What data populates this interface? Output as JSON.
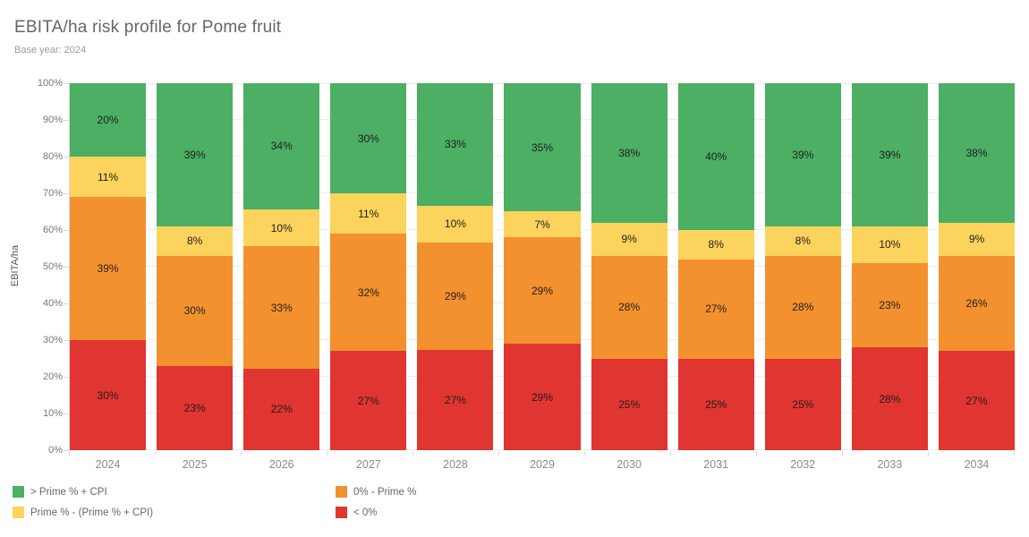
{
  "header": {
    "title": "EBITA/ha risk profile for Pome fruit",
    "subtitle": "Base year: 2024"
  },
  "chart_data": {
    "type": "bar",
    "stacked": true,
    "orientation": "vertical",
    "title": "EBITA/ha risk profile for Pome fruit",
    "subtitle": "Base year: 2024",
    "xlabel": "",
    "ylabel": "EBITA/ha",
    "ylim": [
      0,
      100
    ],
    "ytick_step": 10,
    "ytick_labels": [
      "0%",
      "10%",
      "20%",
      "30%",
      "40%",
      "50%",
      "60%",
      "70%",
      "80%",
      "90%",
      "100%"
    ],
    "grid": true,
    "categories": [
      "2024",
      "2025",
      "2026",
      "2027",
      "2028",
      "2029",
      "2030",
      "2031",
      "2032",
      "2033",
      "2034"
    ],
    "series": [
      {
        "name": "< 0%",
        "color": "#e03531",
        "values": [
          30,
          23,
          22,
          27,
          27,
          29,
          25,
          25,
          25,
          28,
          27
        ]
      },
      {
        "name": "0% - Prime %",
        "color": "#f3912e",
        "values": [
          39,
          30,
          33,
          32,
          29,
          29,
          28,
          27,
          28,
          23,
          26
        ]
      },
      {
        "name": "Prime % - (Prime % + CPI)",
        "color": "#fcd35c",
        "values": [
          11,
          8,
          10,
          11,
          10,
          7,
          9,
          8,
          8,
          10,
          9
        ]
      },
      {
        "name": "> Prime % + CPI",
        "color": "#4caf63",
        "values": [
          20,
          39,
          34,
          30,
          33,
          35,
          38,
          40,
          39,
          39,
          38
        ]
      }
    ],
    "data_label_format": "{value}%",
    "legend_position": "bottom",
    "legend": [
      {
        "label": "> Prime % + CPI",
        "color": "#4caf63"
      },
      {
        "label": "Prime % - (Prime % + CPI)",
        "color": "#fcd35c"
      },
      {
        "label": "0% - Prime %",
        "color": "#f3912e"
      },
      {
        "label": "< 0%",
        "color": "#e03531"
      }
    ]
  },
  "colors": {
    "green": "#4caf63",
    "yellow": "#fcd35c",
    "orange": "#f3912e",
    "red": "#e03531",
    "gridline": "#ececec",
    "axis_text": "#767676"
  }
}
